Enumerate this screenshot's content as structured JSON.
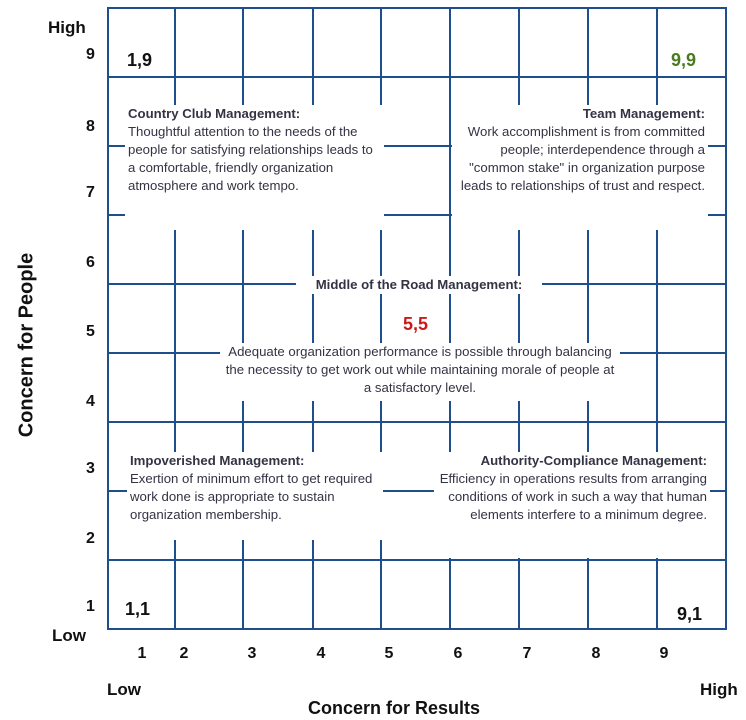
{
  "axes": {
    "y_label": "Concern for People",
    "x_label": "Concern for Results",
    "y_high": "High",
    "y_low": "Low",
    "x_low": "Low",
    "x_high": "High",
    "y_ticks": [
      "9",
      "8",
      "7",
      "6",
      "5",
      "4",
      "3",
      "2",
      "1"
    ],
    "x_ticks": [
      "1",
      "2",
      "3",
      "4",
      "5",
      "6",
      "7",
      "8",
      "9"
    ]
  },
  "corners": {
    "c19": "1,9",
    "c99": "9,9",
    "c55": "5,5",
    "c11": "1,1",
    "c91": "9,1"
  },
  "styles": {
    "c19": {
      "title": "Country Club Management:",
      "body": "Thoughtful attention to the needs of the people for satisfying relationships leads to a comfortable, friendly organization atmosphere and work tempo."
    },
    "c99": {
      "title": "Team Management:",
      "body": "Work accomplishment is from committed people; interdependence through a \"common stake\" in organization purpose leads to relationships of trust and respect."
    },
    "c55": {
      "title": "Middle of the Road Management:",
      "body": "Adequate organization performance is possible through balancing the necessity to get work out while maintaining morale of people at a satisfactory level."
    },
    "c11": {
      "title": "Impoverished Management:",
      "body": "Exertion of minimum effort to get required work done is appropriate to sustain organization membership."
    },
    "c91": {
      "title": "Authority-Compliance Management:",
      "body": "Efficiency in operations results from arranging conditions of work in such a way that human elements interfere to a minimum degree."
    }
  },
  "colors": {
    "grid": "#1f4e8c",
    "green_label": "#4a7a1f",
    "red_label": "#cc1a1a"
  }
}
